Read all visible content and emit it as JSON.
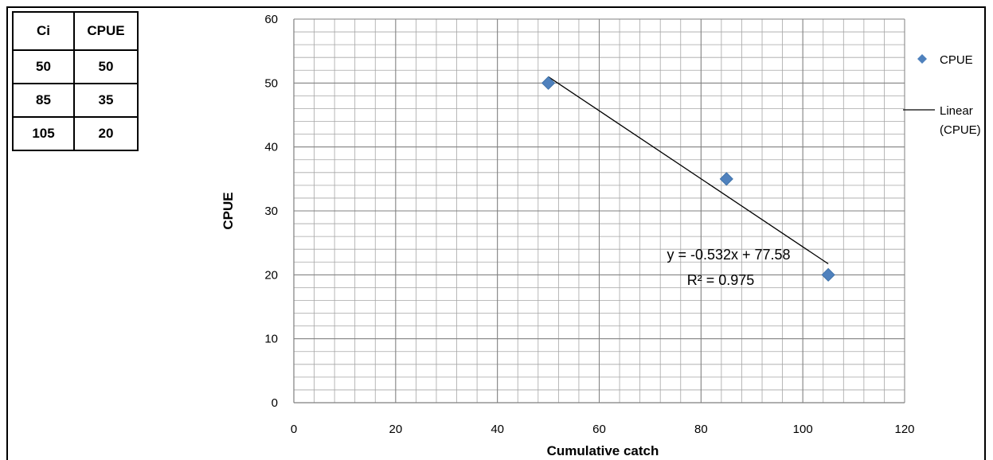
{
  "table": {
    "headers": [
      "Ci",
      "CPUE"
    ],
    "rows": [
      [
        "50",
        "50"
      ],
      [
        "85",
        "35"
      ],
      [
        "105",
        "20"
      ]
    ]
  },
  "chart_data": {
    "type": "scatter",
    "xlabel": "Cumulative catch",
    "ylabel": "CPUE",
    "xlim": [
      0,
      120
    ],
    "ylim": [
      0,
      60
    ],
    "x_ticks": [
      "0",
      "20",
      "40",
      "60",
      "80",
      "100",
      "120"
    ],
    "y_ticks": [
      "0",
      "10",
      "20",
      "30",
      "40",
      "50",
      "60"
    ],
    "grid": true,
    "legend_position": "right",
    "series": [
      {
        "name": "CPUE",
        "x": [
          50,
          85,
          105
        ],
        "y": [
          50,
          35,
          20
        ],
        "color": "#4f81bd",
        "marker": "diamond"
      }
    ],
    "trendline": {
      "name": "Linear (CPUE)",
      "name_lines": [
        "Linear",
        "(CPUE)"
      ],
      "slope": -0.532,
      "intercept": 77.58,
      "x_range": [
        50,
        105
      ],
      "color": "#000000"
    },
    "equation": "y = -0.532x + 77.58",
    "r_squared": "R² = 0.975"
  }
}
